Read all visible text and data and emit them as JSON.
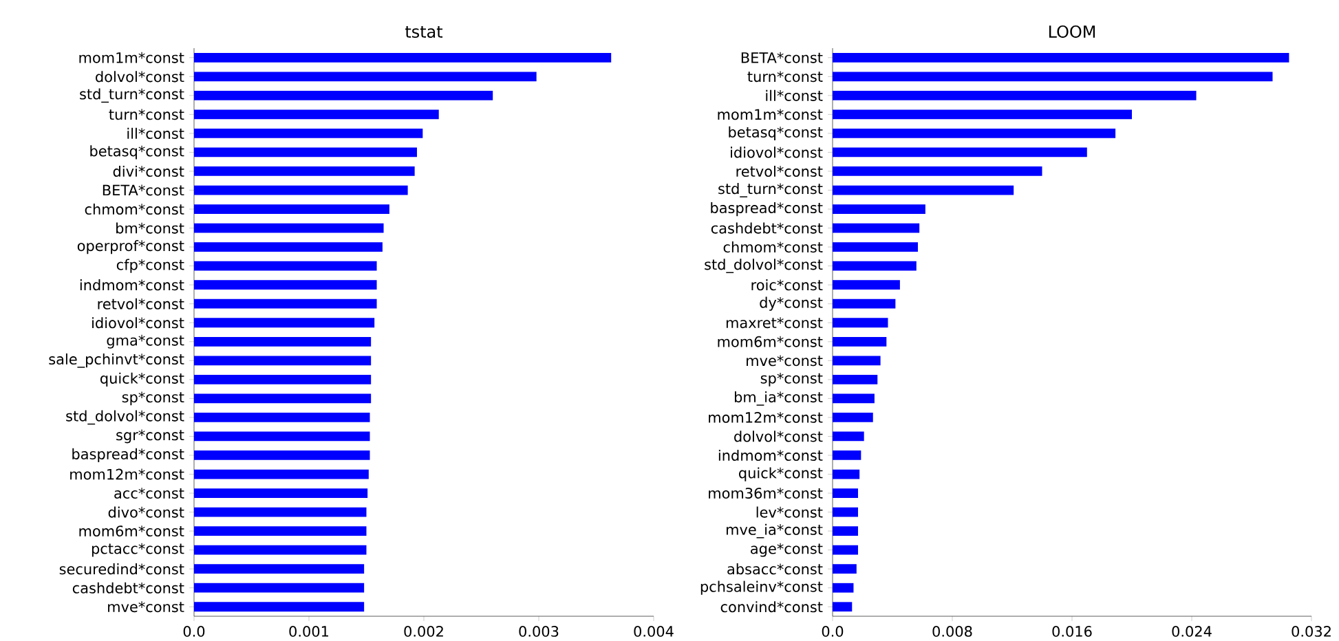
{
  "chart_data": [
    {
      "type": "bar",
      "orientation": "horizontal",
      "title": "tstat",
      "color": "#0000ff",
      "categories": [
        "mom1m*const",
        "dolvol*const",
        "std_turn*const",
        "turn*const",
        "ill*const",
        "betasq*const",
        "divi*const",
        "BETA*const",
        "chmom*const",
        "bm*const",
        "operprof*const",
        "cfp*const",
        "indmom*const",
        "retvol*const",
        "idiovol*const",
        "gma*const",
        "sale_pchinvt*const",
        "quick*const",
        "sp*const",
        "std_dolvol*const",
        "sgr*const",
        "baspread*const",
        "mom12m*const",
        "acc*const",
        "divo*const",
        "mom6m*const",
        "pctacc*const",
        "securedind*const",
        "cashdebt*const",
        "mve*const"
      ],
      "values": [
        0.00363,
        0.00298,
        0.0026,
        0.00213,
        0.00199,
        0.00194,
        0.00192,
        0.00186,
        0.0017,
        0.00165,
        0.00164,
        0.00159,
        0.00159,
        0.00159,
        0.00157,
        0.00154,
        0.00154,
        0.00154,
        0.00154,
        0.00153,
        0.00153,
        0.00153,
        0.00152,
        0.00151,
        0.0015,
        0.0015,
        0.0015,
        0.00148,
        0.00148,
        0.00148
      ],
      "xlim": [
        0,
        0.004
      ],
      "xticks": [
        {
          "value": 0,
          "label": "0.0"
        },
        0.001,
        0.002,
        0.003,
        0.004
      ]
    },
    {
      "type": "bar",
      "orientation": "horizontal",
      "title": "LOOM",
      "color": "#0000ff",
      "categories": [
        "BETA*const",
        "turn*const",
        "ill*const",
        "mom1m*const",
        "betasq*const",
        "idiovol*const",
        "retvol*const",
        "std_turn*const",
        "baspread*const",
        "cashdebt*const",
        "chmom*const",
        "std_dolvol*const",
        "roic*const",
        "dy*const",
        "maxret*const",
        "mom6m*const",
        "mve*const",
        "sp*const",
        "bm_ia*const",
        "mom12m*const",
        "dolvol*const",
        "indmom*const",
        "quick*const",
        "mom36m*const",
        "lev*const",
        "mve_ia*const",
        "age*const",
        "absacc*const",
        "pchsaleinv*const",
        "convind*const"
      ],
      "values": [
        0.0305,
        0.0294,
        0.0243,
        0.02,
        0.0189,
        0.017,
        0.014,
        0.0121,
        0.0062,
        0.0058,
        0.0057,
        0.0056,
        0.0045,
        0.0042,
        0.0037,
        0.0036,
        0.0032,
        0.003,
        0.0028,
        0.0027,
        0.0021,
        0.0019,
        0.0018,
        0.0017,
        0.0017,
        0.0017,
        0.0017,
        0.0016,
        0.0014,
        0.0013
      ],
      "xlim": [
        0,
        0.032
      ],
      "xticks": [
        {
          "value": 0,
          "label": "0.0"
        },
        0.008,
        0.016,
        0.024,
        0.032
      ]
    }
  ]
}
